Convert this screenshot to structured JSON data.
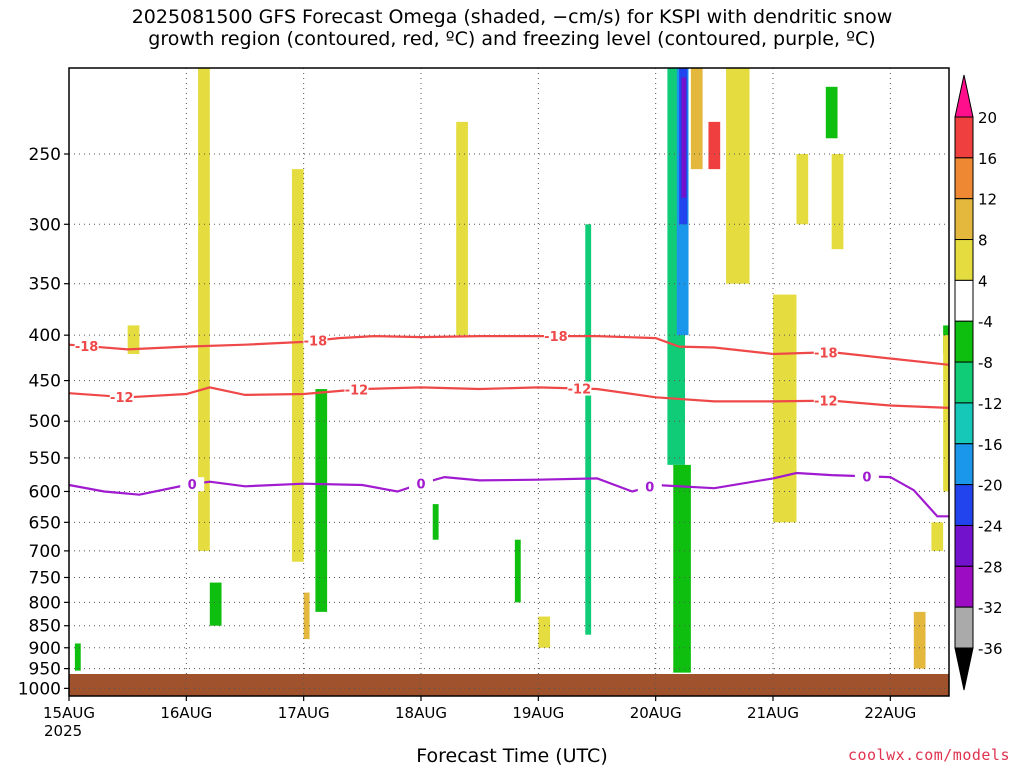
{
  "title_line1": "2025081500 GFS Forecast Omega (shaded, −cm/s) for KSPI with dendritic snow",
  "title_line2": "growth region (contoured, red, ºC) and freezing level (contoured, purple, ºC)",
  "credit": "coolwx.com/models",
  "chart_data": {
    "type": "heatmap",
    "title": "2025081500 GFS Forecast Omega (shaded, −cm/s) for KSPI with dendritic snow growth region (contoured, red, ºC) and freezing level (contoured, purple, ºC)",
    "xlabel": "Forecast Time (UTC)",
    "xyear": "2025",
    "xticks": [
      "15AUG",
      "16AUG",
      "17AUG",
      "18AUG",
      "19AUG",
      "20AUG",
      "21AUG",
      "22AUG"
    ],
    "xlim_days": [
      0,
      7.5
    ],
    "yticks": [
      250,
      300,
      350,
      400,
      450,
      500,
      550,
      600,
      650,
      700,
      750,
      800,
      850,
      900,
      950,
      1000
    ],
    "ylim": [
      200,
      1020
    ],
    "yscale": "log-pressure",
    "grid": true,
    "colorbar": {
      "labels": [
        "20",
        "16",
        "12",
        "8",
        "4",
        "-4",
        "-8",
        "-12",
        "-16",
        "-20",
        "-24",
        "-28",
        "-32",
        "-36"
      ],
      "colors": [
        "#ff0f8c",
        "#ef3f3f",
        "#ef8833",
        "#e3b83d",
        "#e5dc3f",
        "#ffffff",
        "#0fbf0f",
        "#11cc77",
        "#15c8b8",
        "#1a97ea",
        "#2244ee",
        "#7312cc",
        "#9b0cc2",
        "#aaaaaa",
        "#000000"
      ]
    },
    "contours": [
      {
        "name": "-18",
        "color": "#ef4848",
        "label_days": [
          0.15,
          2.1,
          4.15,
          6.45
        ],
        "points": [
          [
            0,
            410
          ],
          [
            0.5,
            415
          ],
          [
            1.0,
            412
          ],
          [
            1.5,
            410
          ],
          [
            2.0,
            407
          ],
          [
            2.3,
            403
          ],
          [
            2.6,
            401
          ],
          [
            3.0,
            402
          ],
          [
            3.5,
            401
          ],
          [
            4.0,
            401
          ],
          [
            4.5,
            401
          ],
          [
            5.0,
            403
          ],
          [
            5.2,
            412
          ],
          [
            5.5,
            413
          ],
          [
            6.0,
            420
          ],
          [
            6.5,
            418
          ],
          [
            7.0,
            425
          ],
          [
            7.5,
            432
          ]
        ]
      },
      {
        "name": "-12",
        "color": "#ef4848",
        "label_days": [
          0.45,
          2.45,
          4.35,
          6.45
        ],
        "points": [
          [
            0,
            465
          ],
          [
            0.5,
            470
          ],
          [
            1.0,
            466
          ],
          [
            1.2,
            458
          ],
          [
            1.5,
            467
          ],
          [
            2.0,
            466
          ],
          [
            2.5,
            460
          ],
          [
            3.0,
            458
          ],
          [
            3.5,
            460
          ],
          [
            4.0,
            458
          ],
          [
            4.5,
            460
          ],
          [
            5.0,
            470
          ],
          [
            5.5,
            475
          ],
          [
            6.0,
            475
          ],
          [
            6.5,
            474
          ],
          [
            7.0,
            480
          ],
          [
            7.5,
            483
          ]
        ]
      },
      {
        "name": "0",
        "color": "#a01ad0",
        "label_days": [
          1.05,
          3.0,
          4.95,
          6.8
        ],
        "points": [
          [
            0,
            590
          ],
          [
            0.3,
            600
          ],
          [
            0.6,
            605
          ],
          [
            1.0,
            590
          ],
          [
            1.2,
            585
          ],
          [
            1.5,
            592
          ],
          [
            2.0,
            588
          ],
          [
            2.5,
            590
          ],
          [
            2.8,
            600
          ],
          [
            3.0,
            588
          ],
          [
            3.2,
            578
          ],
          [
            3.5,
            583
          ],
          [
            4.0,
            582
          ],
          [
            4.5,
            580
          ],
          [
            4.8,
            600
          ],
          [
            5.0,
            590
          ],
          [
            5.5,
            595
          ],
          [
            6.0,
            580
          ],
          [
            6.2,
            572
          ],
          [
            6.5,
            575
          ],
          [
            7.0,
            578
          ],
          [
            7.2,
            598
          ],
          [
            7.4,
            640
          ],
          [
            7.5,
            640
          ]
        ]
      }
    ],
    "omega_patches": [
      {
        "x0": 5.1,
        "x1": 5.25,
        "p0": 200,
        "p1": 560,
        "v": -10
      },
      {
        "x0": 5.15,
        "x1": 5.3,
        "p0": 560,
        "p1": 960,
        "v": -6
      },
      {
        "x0": 5.18,
        "x1": 5.28,
        "p0": 200,
        "p1": 400,
        "v": -16
      },
      {
        "x0": 5.2,
        "x1": 5.27,
        "p0": 200,
        "p1": 300,
        "v": -22
      },
      {
        "x0": 5.22,
        "x1": 5.26,
        "p0": 205,
        "p1": 280,
        "v": -26
      },
      {
        "x0": 4.4,
        "x1": 4.45,
        "p0": 300,
        "p1": 870,
        "v": -10
      },
      {
        "x0": 1.2,
        "x1": 1.3,
        "p0": 760,
        "p1": 850,
        "v": -6
      },
      {
        "x0": 2.1,
        "x1": 2.2,
        "p0": 460,
        "p1": 820,
        "v": -6
      },
      {
        "x0": 3.1,
        "x1": 3.15,
        "p0": 620,
        "p1": 680,
        "v": -6
      },
      {
        "x0": 3.8,
        "x1": 3.85,
        "p0": 680,
        "p1": 800,
        "v": -6
      },
      {
        "x0": 0.05,
        "x1": 0.1,
        "p0": 890,
        "p1": 955,
        "v": -6
      },
      {
        "x0": 6.45,
        "x1": 6.55,
        "p0": 210,
        "p1": 240,
        "v": -6
      },
      {
        "x0": 7.45,
        "x1": 7.5,
        "p0": 390,
        "p1": 420,
        "v": -6
      },
      {
        "x0": 5.3,
        "x1": 5.4,
        "p0": 200,
        "p1": 260,
        "v": 10
      },
      {
        "x0": 5.45,
        "x1": 5.55,
        "p0": 230,
        "p1": 260,
        "v": 18
      },
      {
        "x0": 5.6,
        "x1": 5.8,
        "p0": 200,
        "p1": 350,
        "v": 6
      },
      {
        "x0": 6.0,
        "x1": 6.2,
        "p0": 360,
        "p1": 650,
        "v": 6
      },
      {
        "x0": 6.2,
        "x1": 6.3,
        "p0": 250,
        "p1": 300,
        "v": 6
      },
      {
        "x0": 6.5,
        "x1": 6.6,
        "p0": 250,
        "p1": 320,
        "v": 6
      },
      {
        "x0": 7.2,
        "x1": 7.3,
        "p0": 820,
        "p1": 950,
        "v": 10
      },
      {
        "x0": 7.35,
        "x1": 7.45,
        "p0": 650,
        "p1": 700,
        "v": 6
      },
      {
        "x0": 7.45,
        "x1": 7.5,
        "p0": 400,
        "p1": 600,
        "v": 6
      },
      {
        "x0": 1.1,
        "x1": 1.2,
        "p0": 200,
        "p1": 700,
        "v": 6
      },
      {
        "x0": 1.9,
        "x1": 2.0,
        "p0": 260,
        "p1": 720,
        "v": 6
      },
      {
        "x0": 2.0,
        "x1": 2.05,
        "p0": 780,
        "p1": 880,
        "v": 10
      },
      {
        "x0": 3.3,
        "x1": 3.4,
        "p0": 230,
        "p1": 400,
        "v": 6
      },
      {
        "x0": 4.0,
        "x1": 4.1,
        "p0": 830,
        "p1": 900,
        "v": 6
      },
      {
        "x0": 0.5,
        "x1": 0.6,
        "p0": 390,
        "p1": 420,
        "v": 6
      }
    ]
  }
}
